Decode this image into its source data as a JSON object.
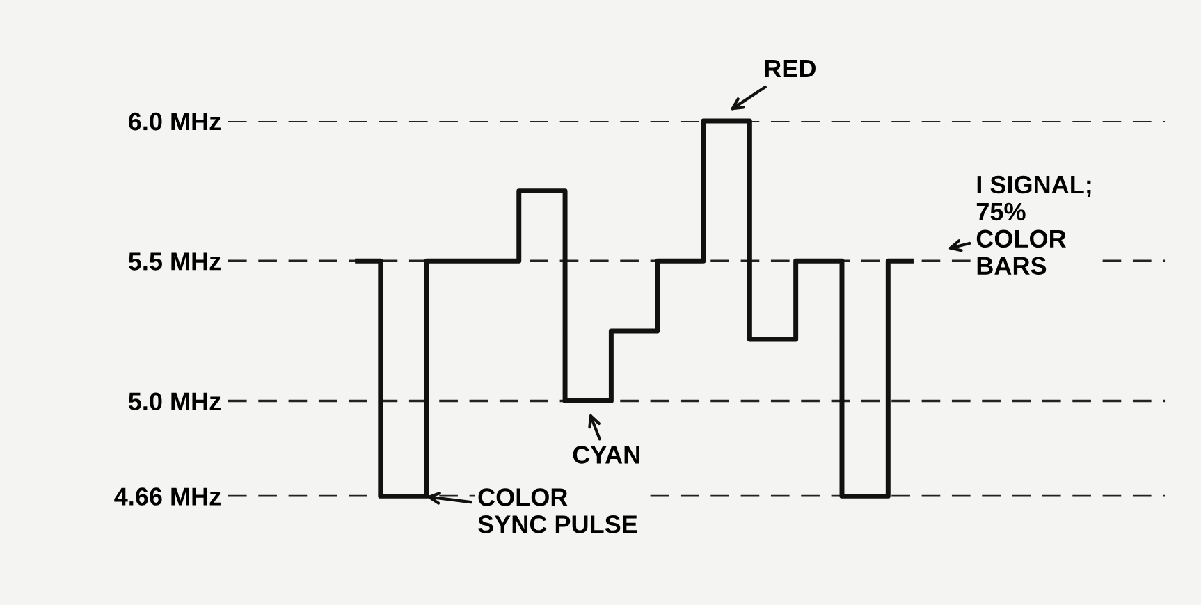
{
  "chart_data": {
    "type": "step",
    "categories": [
      null,
      null,
      null,
      null,
      null,
      null,
      null,
      null,
      null,
      null,
      null,
      null,
      null
    ],
    "values": [
      5.5,
      4.66,
      5.5,
      5.5,
      5.75,
      5.0,
      5.25,
      5.5,
      6.0,
      5.22,
      5.5,
      4.66,
      5.5
    ],
    "color": "#111111",
    "yticks": [
      {
        "value": 4.66,
        "label": "4.66 MHz"
      },
      {
        "value": 5.0,
        "label": "5.0 MHz"
      },
      {
        "value": 5.5,
        "label": "5.5 MHz"
      },
      {
        "value": 6.0,
        "label": "6.0 MHz"
      }
    ],
    "ylim": [
      4.66,
      6.0
    ],
    "grid": "y",
    "line_style": "solid",
    "tick_labels": "y",
    "annotations": [
      "RED",
      "I SIGNAL;\n75%\nCOLOR\nBARS",
      "CYAN",
      "COLOR\nSYNC PULSE"
    ]
  }
}
